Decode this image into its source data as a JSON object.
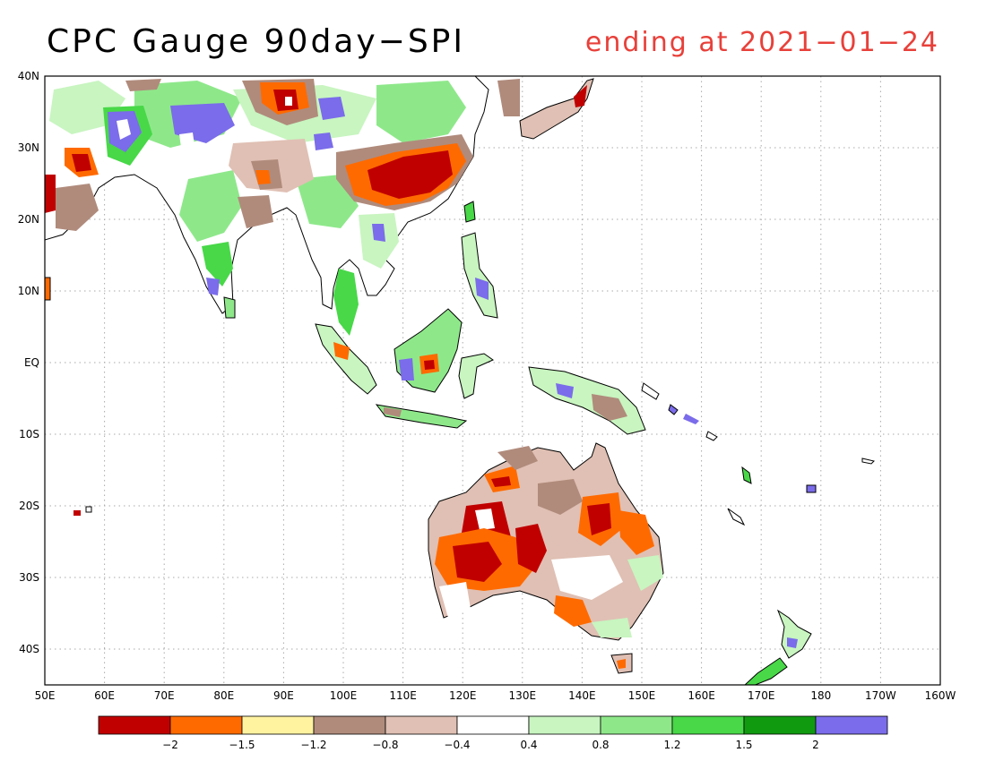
{
  "title": "CPC Gauge 90day−SPI",
  "subtitle": "ending at 2021−01−24",
  "map": {
    "lon_range": [
      50,
      200
    ],
    "lat_range": [
      -45,
      40
    ],
    "grid": "dotted",
    "lat_ticks": [
      {
        "lat": 40,
        "label": "40N"
      },
      {
        "lat": 30,
        "label": "30N"
      },
      {
        "lat": 20,
        "label": "20N"
      },
      {
        "lat": 10,
        "label": "10N"
      },
      {
        "lat": 0,
        "label": "EQ"
      },
      {
        "lat": -10,
        "label": "10S"
      },
      {
        "lat": -20,
        "label": "20S"
      },
      {
        "lat": -30,
        "label": "30S"
      },
      {
        "lat": -40,
        "label": "40S"
      }
    ],
    "lon_ticks": [
      {
        "lon": 50,
        "label": "50E"
      },
      {
        "lon": 60,
        "label": "60E"
      },
      {
        "lon": 70,
        "label": "70E"
      },
      {
        "lon": 80,
        "label": "80E"
      },
      {
        "lon": 90,
        "label": "90E"
      },
      {
        "lon": 100,
        "label": "100E"
      },
      {
        "lon": 110,
        "label": "110E"
      },
      {
        "lon": 120,
        "label": "120E"
      },
      {
        "lon": 130,
        "label": "130E"
      },
      {
        "lon": 140,
        "label": "140E"
      },
      {
        "lon": 150,
        "label": "150E"
      },
      {
        "lon": 160,
        "label": "160E"
      },
      {
        "lon": 170,
        "label": "170E"
      },
      {
        "lon": 180,
        "label": "180"
      },
      {
        "lon": 190,
        "label": "170W"
      },
      {
        "lon": 200,
        "label": "160W"
      }
    ]
  },
  "legend": {
    "colors": [
      "#c00000",
      "#ff6a00",
      "#fff3a0",
      "#b08b7c",
      "#e0c0b4",
      "#ffffff",
      "#c8f5c0",
      "#8ee88a",
      "#48d848",
      "#109a10",
      "#7a6cea"
    ],
    "labels": [
      "−2",
      "−1.5",
      "−1.2",
      "−0.8",
      "−0.4",
      "0.4",
      "0.8",
      "1.2",
      "1.5",
      "2"
    ]
  },
  "palette": {
    "very_dry": "#c00000",
    "dry": "#ff6a00",
    "slightly_dry": "#fff3a0",
    "moderately_dry": "#b08b7c",
    "near_dry": "#e0c0b4",
    "near_wet": "#c8f5c0",
    "slightly_wet": "#8ee88a",
    "moderately_wet": "#48d848",
    "wet": "#109a10",
    "very_wet": "#7a6cea"
  }
}
